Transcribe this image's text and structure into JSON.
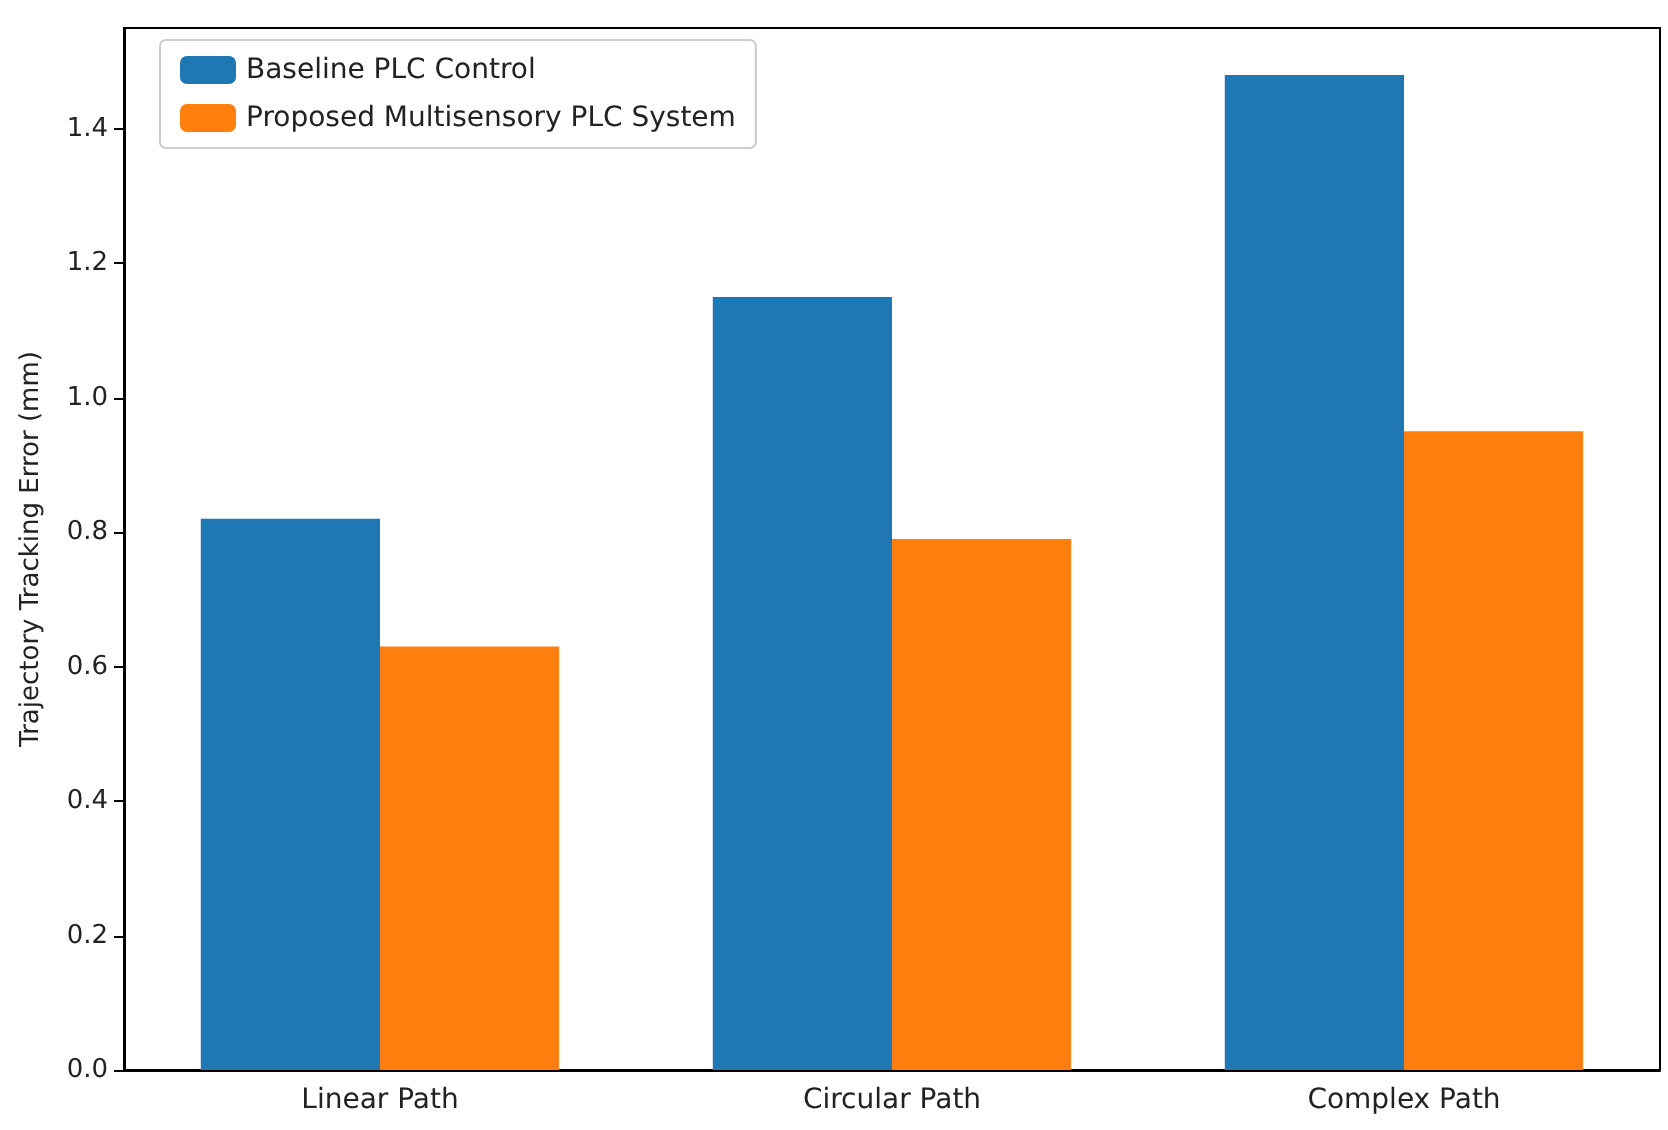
{
  "chart_data": {
    "type": "bar",
    "ylabel": "Trajectory Tracking Error (mm)",
    "categories": [
      "Linear Path",
      "Circular Path",
      "Complex Path"
    ],
    "series": [
      {
        "name": "Baseline PLC Control",
        "color": "#1f77b4",
        "values": [
          0.82,
          1.15,
          1.48
        ]
      },
      {
        "name": "Proposed Multisensory PLC System",
        "color": "#ff7f0e",
        "values": [
          0.63,
          0.79,
          0.95
        ]
      }
    ],
    "ylim": [
      0,
      1.55
    ],
    "yticks": [
      {
        "value": 0,
        "label": "0.0"
      },
      0.2,
      0.4,
      0.6,
      0.8,
      {
        "value": 1,
        "label": "1.0"
      },
      1.2,
      1.4
    ],
    "legend": "top left",
    "grid": false
  }
}
